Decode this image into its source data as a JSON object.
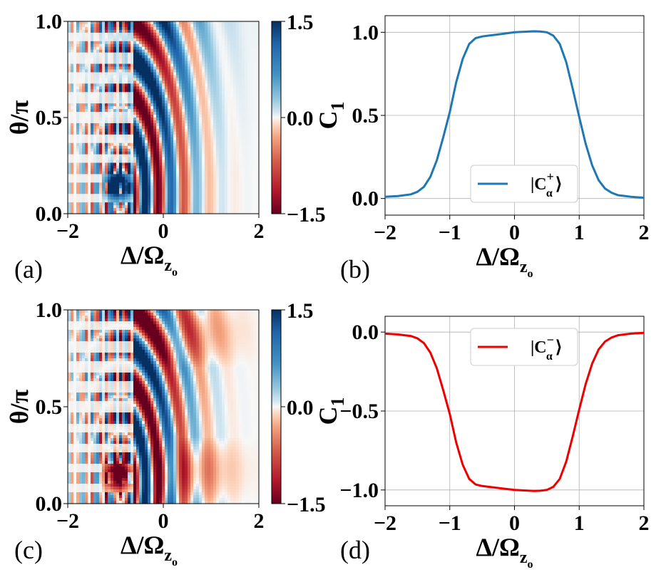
{
  "figure": {
    "heatmap_common": {
      "xlabel_main": "Δ/Ω",
      "xlabel_sub": "z",
      "xlabel_subsub": "o",
      "ylabel": "θ/π",
      "x_ticks": [
        "−2",
        "0",
        "2"
      ],
      "y_ticks": [
        "0.0",
        "0.5",
        "1.0"
      ],
      "colorbar_ticks": [
        "1.5",
        "0.0",
        "−1.5"
      ]
    },
    "colors": {
      "positive": "#0b4f8c",
      "negative": "#8a0c24",
      "neutral": "#f7f7f7",
      "line_plus": "#1f77b4",
      "line_minus": "#ee0000",
      "grid": "#b0b0b0"
    }
  },
  "chart_data": [
    {
      "panel_label": "(a)",
      "type": "heatmap",
      "x_range": [
        -2,
        2
      ],
      "y_range": [
        0,
        1
      ],
      "colorbar_range": [
        -1.5,
        1.5
      ],
      "cmap": "RdBu",
      "variant": "plus"
    },
    {
      "panel_label": "(b)",
      "type": "line",
      "ylabel": "C",
      "ylabel_sub": "1",
      "legend_prefix": "|C",
      "legend_sup": "+",
      "legend_sub": "α",
      "legend_suffix": "⟩",
      "legend_position": "lower-center",
      "x_ticks": [
        "−2",
        "−1",
        "0",
        "1",
        "2"
      ],
      "y_ticks": [
        "0.0",
        "0.5",
        "1.0"
      ],
      "xlim": [
        -2,
        2
      ],
      "ylim": [
        -0.1,
        1.1
      ],
      "x": [
        -2,
        -1.8,
        -1.6,
        -1.5,
        -1.4,
        -1.3,
        -1.2,
        -1.1,
        -1.0,
        -0.9,
        -0.8,
        -0.7,
        -0.6,
        -0.5,
        -0.4,
        -0.2,
        0,
        0.2,
        0.3,
        0.4,
        0.5,
        0.6,
        0.7,
        0.8,
        0.9,
        1.0,
        1.1,
        1.2,
        1.3,
        1.4,
        1.5,
        1.6,
        1.8,
        2.0
      ],
      "y": [
        0.01,
        0.015,
        0.025,
        0.04,
        0.07,
        0.13,
        0.23,
        0.37,
        0.52,
        0.7,
        0.84,
        0.93,
        0.965,
        0.975,
        0.98,
        0.99,
        1.0,
        1.004,
        1.006,
        1.005,
        1.0,
        0.98,
        0.93,
        0.82,
        0.66,
        0.49,
        0.33,
        0.2,
        0.11,
        0.06,
        0.035,
        0.02,
        0.01,
        0.005
      ]
    },
    {
      "panel_label": "(c)",
      "type": "heatmap",
      "x_range": [
        -2,
        2
      ],
      "y_range": [
        0,
        1
      ],
      "colorbar_range": [
        -1.5,
        1.5
      ],
      "cmap": "RdBu",
      "variant": "minus"
    },
    {
      "panel_label": "(d)",
      "type": "line",
      "ylabel": "C",
      "ylabel_sub": "1",
      "legend_prefix": "|C",
      "legend_sup": "−",
      "legend_sub": "α",
      "legend_suffix": "⟩",
      "legend_position": "upper-center",
      "x_ticks": [
        "−2",
        "−1",
        "0",
        "1",
        "2"
      ],
      "y_ticks": [
        "0.0",
        "−0.5",
        "−1.0"
      ],
      "xlim": [
        -2,
        2
      ],
      "ylim": [
        -1.1,
        0.1
      ],
      "x": [
        -2,
        -1.8,
        -1.6,
        -1.5,
        -1.4,
        -1.3,
        -1.2,
        -1.1,
        -1.0,
        -0.9,
        -0.8,
        -0.7,
        -0.6,
        -0.5,
        -0.4,
        -0.2,
        0,
        0.2,
        0.3,
        0.4,
        0.5,
        0.6,
        0.7,
        0.8,
        0.9,
        1.0,
        1.1,
        1.2,
        1.3,
        1.4,
        1.5,
        1.6,
        1.8,
        2.0
      ],
      "y": [
        -0.01,
        -0.015,
        -0.025,
        -0.04,
        -0.07,
        -0.13,
        -0.23,
        -0.37,
        -0.52,
        -0.7,
        -0.84,
        -0.93,
        -0.965,
        -0.975,
        -0.98,
        -0.99,
        -1.0,
        -1.004,
        -1.006,
        -1.005,
        -1.0,
        -0.98,
        -0.93,
        -0.82,
        -0.66,
        -0.49,
        -0.33,
        -0.2,
        -0.11,
        -0.06,
        -0.035,
        -0.02,
        -0.01,
        -0.005
      ]
    }
  ]
}
